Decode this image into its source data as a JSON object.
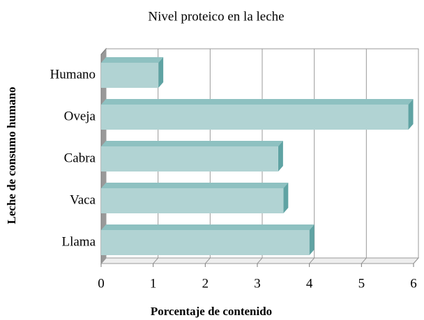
{
  "chart_data": {
    "type": "bar3d_horizontal",
    "title": "Nivel proteico en la leche",
    "x_label": "Porcentaje de contenido",
    "y_label": "Leche de consumo humano",
    "categories": [
      "Humano",
      "Oveja",
      "Cabra",
      "Vaca",
      "Llama"
    ],
    "values": [
      1.1,
      5.9,
      3.4,
      3.5,
      4.0
    ],
    "color": "#b1d3d3",
    "xlim": [
      0,
      6
    ],
    "xticks": [
      0,
      1,
      2,
      3,
      4,
      5,
      6
    ],
    "grid": true
  }
}
